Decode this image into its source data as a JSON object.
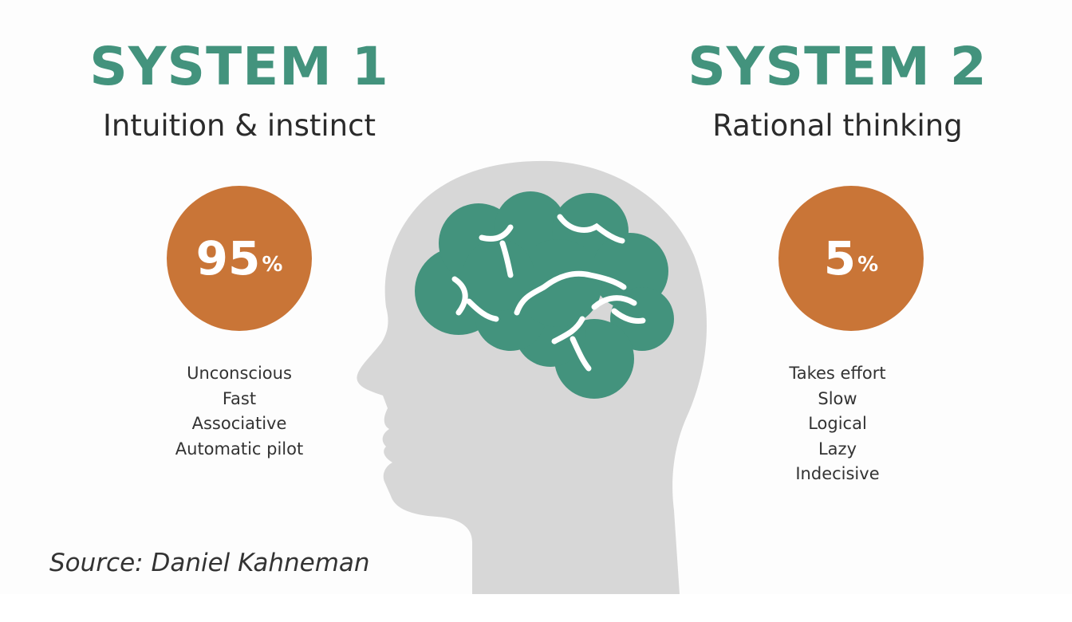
{
  "colors": {
    "teal": "#43937d",
    "orange": "#c97537",
    "head_gray": "#d7d7d7",
    "text_dark": "#2b2b2b"
  },
  "system1": {
    "title": "SYSTEM 1",
    "subtitle": "Intuition & instinct",
    "percent_value": "95",
    "percent_sign": "%",
    "traits": [
      "Unconscious",
      "Fast",
      "Associative",
      "Automatic pilot"
    ]
  },
  "system2": {
    "title": "SYSTEM 2",
    "subtitle": "Rational thinking",
    "percent_value": "5",
    "percent_sign": "%",
    "traits": [
      "Takes effort",
      "Slow",
      "Logical",
      "Lazy",
      "Indecisive"
    ]
  },
  "source": "Source: Daniel Kahneman",
  "icons": {
    "head": "head-silhouette-icon",
    "brain": "brain-icon"
  }
}
